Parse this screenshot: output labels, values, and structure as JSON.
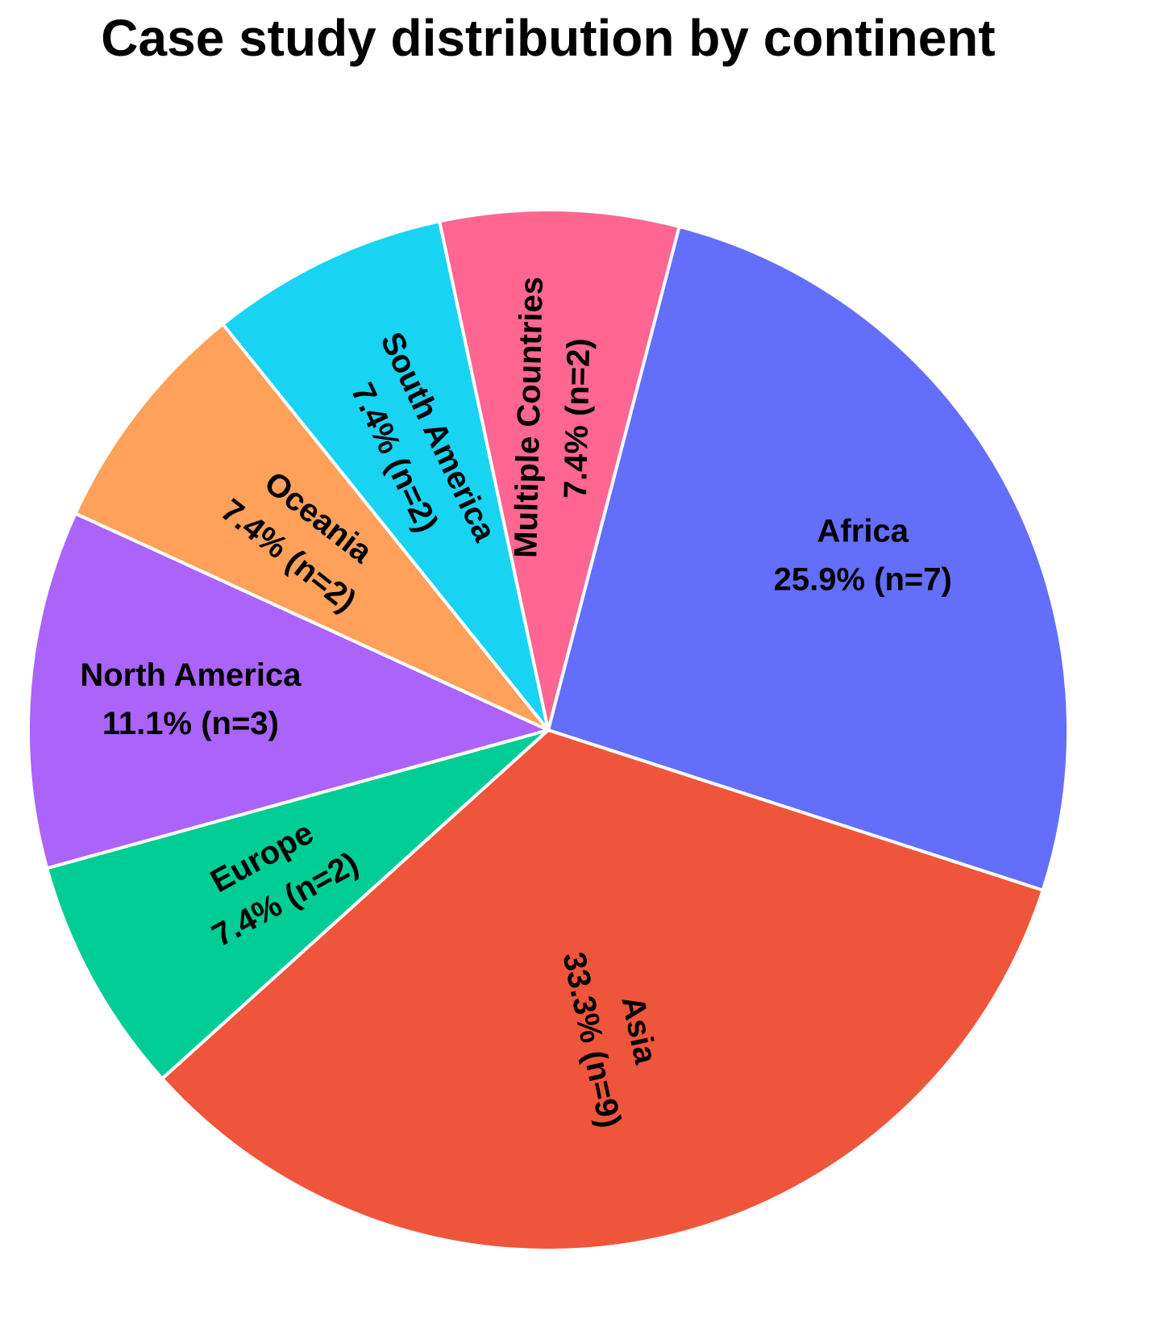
{
  "chart_data": {
    "type": "pie",
    "title": "Case study distribution by continent",
    "labels": [
      "Africa",
      "Asia",
      "Europe",
      "North America",
      "Oceania",
      "South America",
      "Multiple Countries"
    ],
    "values": [
      7,
      9,
      2,
      3,
      2,
      2,
      2
    ],
    "value_labels": [
      "25.9% (n=7)",
      "33.3% (n=9)",
      "7.4% (n=2)",
      "11.1% (n=3)",
      "7.4% (n=2)",
      "7.4% (n=2)",
      "7.4% (n=2)"
    ],
    "colors": [
      "#636efa",
      "#EF553B",
      "#00cc96",
      "#ab63fa",
      "#FFA15A",
      "#19d3f3",
      "#FF6692"
    ]
  }
}
